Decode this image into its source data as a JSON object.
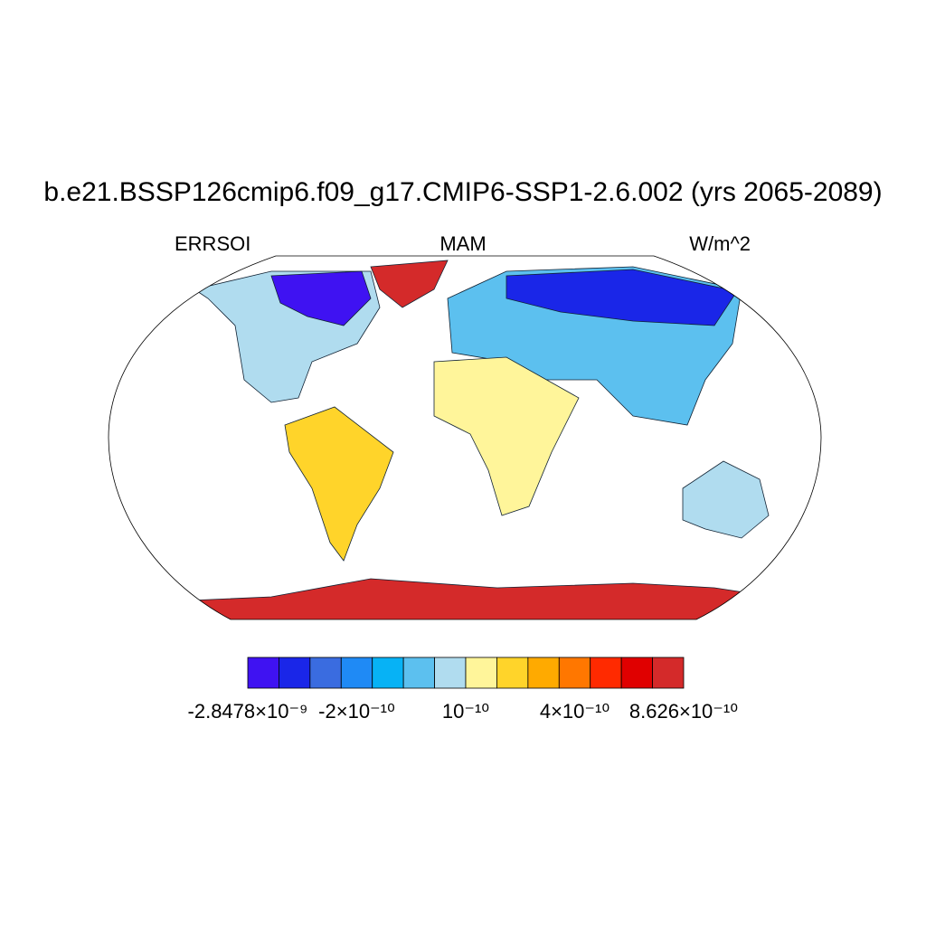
{
  "header": {
    "title": "b.e21.BSSP126cmip6.f09_g17.CMIP6-SSP1-2.6.002 (yrs 2065-2089)",
    "left_label": "ERRSOI",
    "center_label": "MAM",
    "right_label": "W/m^2"
  },
  "colorbar": {
    "colors": [
      "#3f12f2",
      "#1a26e8",
      "#3a6ce0",
      "#1f8af5",
      "#07b2f5",
      "#5cc0ef",
      "#b0dcef",
      "#fff59a",
      "#ffd42a",
      "#ffaa00",
      "#ff7700",
      "#ff2a00",
      "#e00000",
      "#d42a2a"
    ],
    "ticks": [
      {
        "value": -2.8478e-09,
        "label": "-2.8478×10⁻⁹"
      },
      {
        "value": -2e-10,
        "label": "-2×10⁻¹⁰"
      },
      {
        "value": 1e-10,
        "label": "10⁻¹⁰"
      },
      {
        "value": 4e-10,
        "label": "4×10⁻¹⁰"
      },
      {
        "value": 8.626e-10,
        "label": "8.626×10⁻¹⁰"
      }
    ]
  }
}
